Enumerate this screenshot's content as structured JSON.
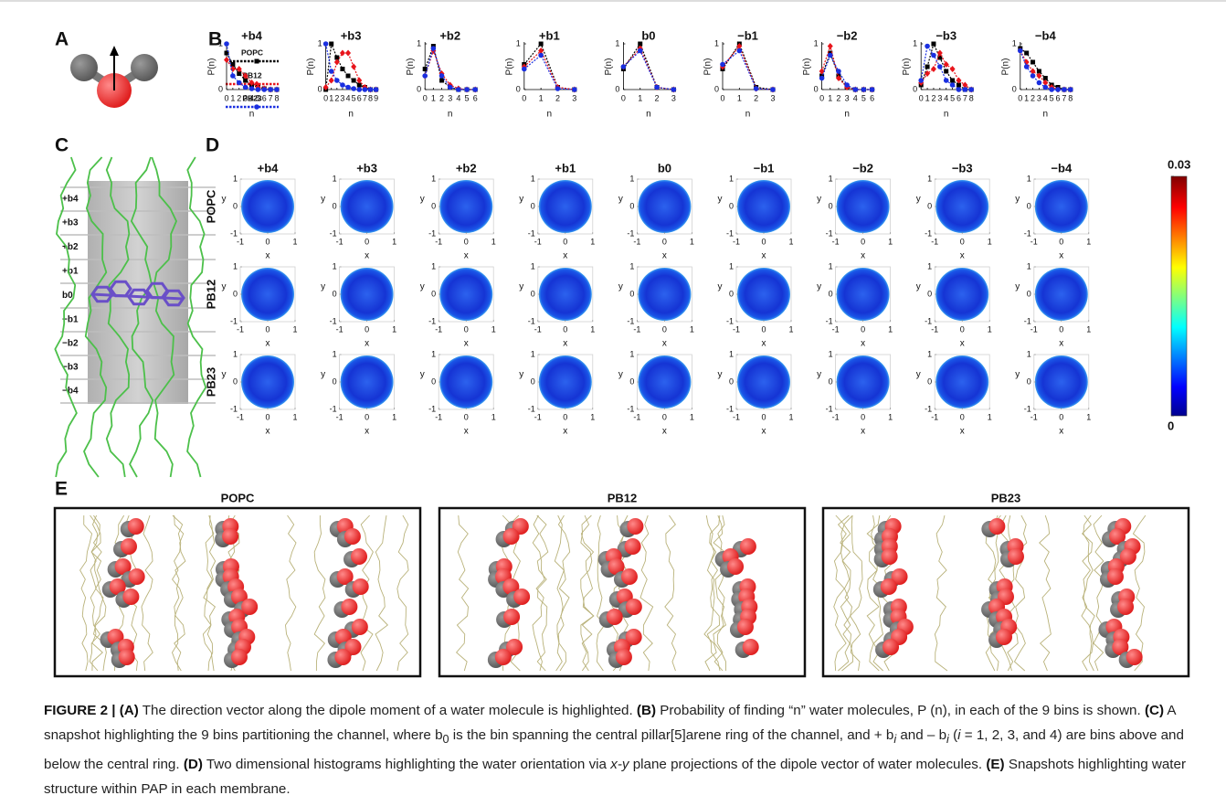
{
  "panel_a": {
    "label": "A"
  },
  "panel_b": {
    "label": "B",
    "ylabel": "P(n)",
    "xlabel": "n",
    "ylim": [
      0,
      1
    ],
    "yticks": [
      0,
      1
    ],
    "legend": [
      {
        "name": "POPC",
        "color": "#000000"
      },
      {
        "name": "PB12",
        "color": "#e8141b"
      },
      {
        "name": "PB23",
        "color": "#1a2fe0"
      }
    ],
    "plots": [
      {
        "title": "+b4",
        "x": [
          0,
          1,
          2,
          3,
          4,
          5,
          6,
          7,
          8
        ],
        "xlim": [
          0,
          8
        ],
        "values": [
          [
            0.8,
            0.55,
            0.35,
            0.2,
            0.1,
            0.05,
            0.02,
            0,
            0
          ],
          [
            0.65,
            0.45,
            0.45,
            0.3,
            0.15,
            0.05,
            0.02,
            0,
            0
          ],
          [
            1,
            0.3,
            0.15,
            0.05,
            0.02,
            0,
            0,
            0,
            0
          ]
        ]
      },
      {
        "title": "+b3",
        "x": [
          0,
          1,
          2,
          3,
          4,
          5,
          6,
          7,
          8,
          9
        ],
        "xlim": [
          0,
          9
        ],
        "values": [
          [
            0,
            1,
            0.7,
            0.45,
            0.3,
            0.2,
            0.1,
            0.05,
            0,
            0
          ],
          [
            0.05,
            0.2,
            0.6,
            0.8,
            0.8,
            0.5,
            0.2,
            0.05,
            0,
            0
          ],
          [
            1,
            0.4,
            0.2,
            0.1,
            0.05,
            0.02,
            0,
            0,
            0,
            0
          ]
        ]
      },
      {
        "title": "+b2",
        "x": [
          0,
          1,
          2,
          3,
          4,
          5,
          6
        ],
        "xlim": [
          0,
          6
        ],
        "values": [
          [
            0.45,
            0.95,
            0.2,
            0.05,
            0,
            0,
            0
          ],
          [
            0.3,
            0.85,
            0.35,
            0.1,
            0.02,
            0,
            0
          ],
          [
            0.3,
            0.9,
            0.3,
            0.05,
            0,
            0,
            0
          ]
        ]
      },
      {
        "title": "+b1",
        "x": [
          0,
          1,
          2,
          3
        ],
        "xlim": [
          0,
          3
        ],
        "values": [
          [
            0.55,
            1,
            0.05,
            0
          ],
          [
            0.5,
            0.85,
            0.05,
            0
          ],
          [
            0.45,
            0.75,
            0.02,
            0
          ]
        ]
      },
      {
        "title": "b0",
        "x": [
          0,
          1,
          2,
          3
        ],
        "xlim": [
          0,
          3
        ],
        "values": [
          [
            0.45,
            1,
            0.05,
            0
          ],
          [
            0.5,
            0.9,
            0.05,
            0
          ],
          [
            0.5,
            0.85,
            0.05,
            0
          ]
        ]
      },
      {
        "title": "−b1",
        "x": [
          0,
          1,
          2,
          3
        ],
        "xlim": [
          0,
          3
        ],
        "values": [
          [
            0.45,
            1,
            0.05,
            0
          ],
          [
            0.5,
            0.95,
            0.02,
            0
          ],
          [
            0.55,
            0.85,
            0.02,
            0
          ]
        ]
      },
      {
        "title": "−b2",
        "x": [
          0,
          1,
          2,
          3,
          4,
          5,
          6
        ],
        "xlim": [
          0,
          6
        ],
        "values": [
          [
            0.3,
            0.8,
            0.3,
            0.05,
            0,
            0,
            0
          ],
          [
            0.4,
            0.95,
            0.25,
            0.05,
            0,
            0,
            0
          ],
          [
            0.25,
            0.75,
            0.4,
            0.1,
            0,
            0,
            0
          ]
        ]
      },
      {
        "title": "−b3",
        "x": [
          0,
          1,
          2,
          3,
          4,
          5,
          6,
          7,
          8
        ],
        "xlim": [
          0,
          8
        ],
        "values": [
          [
            0.1,
            0.5,
            1,
            0.7,
            0.4,
            0.2,
            0.1,
            0,
            0
          ],
          [
            0.15,
            0.35,
            0.45,
            0.8,
            0.55,
            0.45,
            0.2,
            0.1,
            0
          ],
          [
            0.2,
            0.95,
            0.75,
            0.5,
            0.2,
            0.1,
            0,
            0,
            0
          ]
        ]
      },
      {
        "title": "−b4",
        "x": [
          0,
          1,
          2,
          3,
          4,
          5,
          6,
          7,
          8
        ],
        "xlim": [
          0,
          8
        ],
        "values": [
          [
            0.9,
            0.8,
            0.6,
            0.4,
            0.25,
            0.1,
            0.05,
            0,
            0
          ],
          [
            0.85,
            0.6,
            0.4,
            0.3,
            0.15,
            0.05,
            0,
            0,
            0
          ],
          [
            0.85,
            0.5,
            0.3,
            0.15,
            0.05,
            0,
            0,
            0,
            0
          ]
        ]
      }
    ]
  },
  "panel_c": {
    "label": "C",
    "bins": [
      "+b4",
      "+b3",
      "+b2",
      "+b1",
      "b0",
      "−b1",
      "−b2",
      "−b3",
      "−b4"
    ]
  },
  "panel_d": {
    "label": "D",
    "columns": [
      "+b4",
      "+b3",
      "+b2",
      "+b1",
      "b0",
      "−b1",
      "−b2",
      "−b3",
      "−b4"
    ],
    "rows": [
      "POPC",
      "PB12",
      "PB23"
    ],
    "xlabel": "x",
    "ylabel": "y",
    "xlim": [
      -1,
      1
    ],
    "ylim": [
      -1,
      1
    ],
    "xticks": [
      -1,
      0,
      1
    ],
    "yticks": [
      -1,
      0,
      1
    ],
    "colorbar": {
      "lim": [
        0,
        0.03
      ],
      "ticks": [
        0,
        0.03
      ]
    }
  },
  "panel_e": {
    "label": "E",
    "titles": [
      "POPC",
      "PB12",
      "PB23"
    ]
  },
  "caption": [
    "FIGURE 2 | (A)",
    " The direction vector along the dipole moment of a water molecule is highlighted. ",
    "(B)",
    " Probability of finding “n” water molecules, P (n), in each of the 9 bins is shown. ",
    "(C)",
    " A snapshot highlighting the 9 bins partitioning the channel, where b",
    "0",
    " is the bin spanning the central pillar[5]arene ring of the channel, and + b",
    "i",
    " and – b",
    "i",
    " (",
    "i",
    " = 1, 2, 3, and 4) are bins above and below the central ring. ",
    "(D)",
    " Two dimensional histograms highlighting the water orientation via ",
    "x-y",
    " plane projections of the dipole vector of water molecules. ",
    "(E)",
    " Snapshots highlighting water structure within PAP in each membrane."
  ]
}
